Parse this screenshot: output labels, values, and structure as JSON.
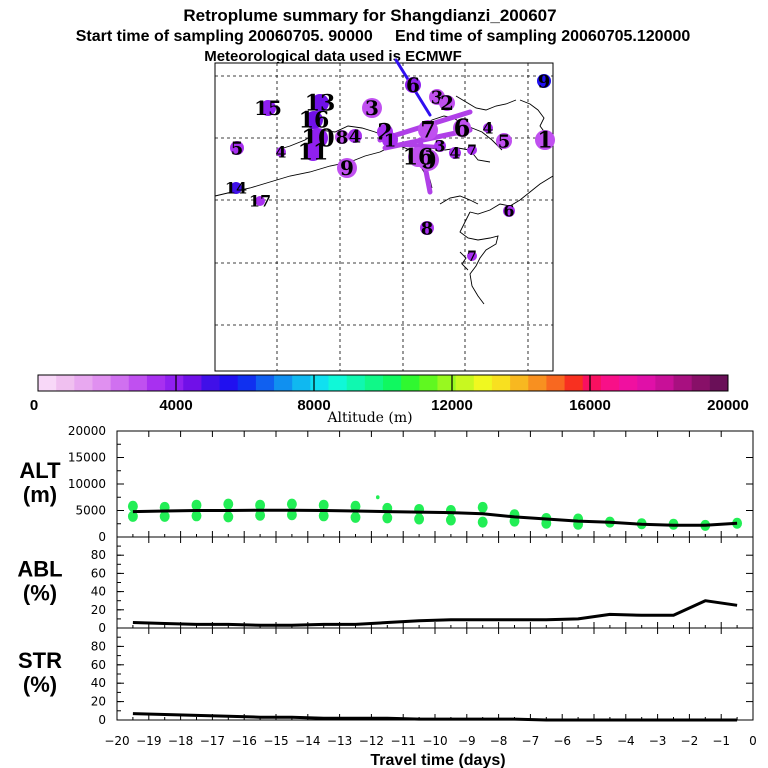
{
  "header": {
    "title": "Retroplume summary for Shangdianzi_200607",
    "sampling_line": "Start time of sampling 20060705. 90000     End time of sampling 20060705.120000",
    "met_line": "Meteorological data used is ECMWF"
  },
  "colors": {
    "background": "#ffffff",
    "panel_line": "#000000",
    "alt_points": "#22ee55",
    "gridline": "#000000"
  },
  "colorbar": {
    "title": "Altitude (m)",
    "tick_labels": [
      "0",
      "4000",
      "8000",
      "12000",
      "16000",
      "20000"
    ],
    "colors": [
      "#f8d8f8",
      "#f0c0f0",
      "#e8a8f0",
      "#e090f0",
      "#d070f0",
      "#c050f0",
      "#a830f0",
      "#9020f0",
      "#7010e8",
      "#4010e8",
      "#2010f0",
      "#1030f0",
      "#1060f0",
      "#1090f0",
      "#10b8f0",
      "#10e0f0",
      "#10f8d8",
      "#10f8b0",
      "#10f888",
      "#10f860",
      "#30f830",
      "#60f820",
      "#98f820",
      "#c8f820",
      "#f0f820",
      "#f8e020",
      "#f8b820",
      "#f89020",
      "#f86820",
      "#f83020",
      "#f81060",
      "#f81088",
      "#f010a0",
      "#e010a8",
      "#c81098",
      "#a81080",
      "#881068",
      "#6a1058"
    ]
  },
  "map_labels": {
    "numbers": [
      {
        "text": "15",
        "color": "#9020f0"
      },
      {
        "text": "13",
        "color": "#7010e8"
      },
      {
        "text": "3",
        "color": "#c050f0"
      },
      {
        "text": "16",
        "color": "#7010e8"
      },
      {
        "text": "10",
        "color": "#9020f0"
      },
      {
        "text": "8",
        "color": "#c050f0"
      },
      {
        "text": "4",
        "color": "#a830f0"
      },
      {
        "text": "11",
        "color": "#9020f0"
      },
      {
        "text": "5",
        "color": "#a830f0"
      },
      {
        "text": "4",
        "color": "#a830f0"
      },
      {
        "text": "9",
        "color": "#c050f0"
      },
      {
        "text": "14",
        "color": "#4010e8"
      },
      {
        "text": "17",
        "color": "#a830f0"
      },
      {
        "text": "2",
        "color": "#a830f0"
      },
      {
        "text": "1",
        "color": "#a830f0"
      },
      {
        "text": "3",
        "color": "#c050f0"
      },
      {
        "text": "0",
        "color": "#c050f0"
      },
      {
        "text": "6",
        "color": "#9020f0"
      },
      {
        "text": "2",
        "color": "#c050f0"
      },
      {
        "text": "7",
        "color": "#c050f0"
      },
      {
        "text": "6",
        "color": "#c050f0"
      },
      {
        "text": "4",
        "color": "#a830f0"
      },
      {
        "text": "3",
        "color": "#a830f0"
      },
      {
        "text": "4",
        "color": "#a830f0"
      },
      {
        "text": "7",
        "color": "#a830f0"
      },
      {
        "text": "5",
        "color": "#c050f0"
      },
      {
        "text": "16",
        "color": "#c050f0"
      },
      {
        "text": "9",
        "color": "#2010f0"
      },
      {
        "text": "6",
        "color": "#a830f0"
      },
      {
        "text": "8",
        "color": "#a830f0"
      },
      {
        "text": "7",
        "color": "#a830f0"
      },
      {
        "text": "1",
        "color": "#c050f0"
      }
    ]
  },
  "chart_data": [
    {
      "type": "scatter",
      "panel": "ALT",
      "ylabel": "ALT\n(m)",
      "ylim": [
        0,
        20000
      ],
      "y_ticks": [
        "0",
        "5000",
        "10000",
        "15000",
        "20000"
      ],
      "xlim": [
        -20,
        0
      ],
      "series": [
        {
          "name": "mean altitude",
          "kind": "line",
          "x": [
            -19.5,
            -18.5,
            -17.5,
            -16.5,
            -15.5,
            -14.5,
            -13.5,
            -12.5,
            -11.5,
            -10.5,
            -9.5,
            -8.5,
            -7.5,
            -6.5,
            -5.5,
            -4.5,
            -3.5,
            -2.5,
            -1.5,
            -0.5
          ],
          "y": [
            4800,
            4900,
            5000,
            5000,
            5050,
            5050,
            5000,
            4900,
            4800,
            4700,
            4600,
            4400,
            3800,
            3400,
            3000,
            2800,
            2400,
            2200,
            2200,
            2600
          ]
        },
        {
          "name": "plume points",
          "kind": "dots",
          "x": [
            -19.5,
            -19.5,
            -18.5,
            -18.5,
            -17.5,
            -17.5,
            -16.5,
            -16.5,
            -15.5,
            -15.5,
            -14.5,
            -14.5,
            -13.5,
            -13.5,
            -12.5,
            -12.5,
            -11.5,
            -11.5,
            -10.5,
            -10.5,
            -9.5,
            -9.5,
            -8.5,
            -8.5,
            -7.5,
            -7.5,
            -6.5,
            -6.5,
            -5.5,
            -5.5,
            -4.5,
            -3.5,
            -2.5,
            -1.5,
            -0.5,
            -11.8
          ],
          "y": [
            5800,
            3900,
            5600,
            3900,
            6000,
            4000,
            6200,
            3800,
            6000,
            4100,
            6200,
            4200,
            6000,
            4000,
            5800,
            3700,
            5400,
            3600,
            5200,
            3400,
            5000,
            3200,
            5600,
            2800,
            4200,
            3000,
            3500,
            2600,
            3400,
            2400,
            2800,
            2500,
            2400,
            2200,
            2600,
            7500
          ]
        }
      ]
    },
    {
      "type": "line",
      "panel": "ABL",
      "ylabel": "ABL\n(%)",
      "ylim": [
        0,
        100
      ],
      "y_ticks": [
        "0",
        "20",
        "40",
        "60",
        "80"
      ],
      "xlim": [
        -20,
        0
      ],
      "series": [
        {
          "name": "ABL fraction",
          "x": [
            -19.5,
            -18.5,
            -17.5,
            -16.5,
            -15.5,
            -14.5,
            -13.5,
            -12.5,
            -11.5,
            -10.5,
            -9.5,
            -8.5,
            -7.5,
            -6.5,
            -5.5,
            -4.5,
            -3.5,
            -2.5,
            -1.5,
            -0.5
          ],
          "y": [
            6,
            5,
            4,
            4,
            3,
            3,
            4,
            4,
            6,
            8,
            9,
            9,
            9,
            9,
            10,
            15,
            14,
            14,
            30,
            25
          ]
        }
      ]
    },
    {
      "type": "line",
      "panel": "STR",
      "ylabel": "STR\n(%)",
      "ylim": [
        0,
        100
      ],
      "y_ticks": [
        "0",
        "20",
        "40",
        "60",
        "80"
      ],
      "xlabel": "Travel time (days)",
      "xlim": [
        -20,
        0
      ],
      "x_ticks": [
        "−20",
        "−19",
        "−18",
        "−17",
        "−16",
        "−15",
        "−14",
        "−13",
        "−12",
        "−11",
        "−10",
        "−9",
        "−8",
        "−7",
        "−6",
        "−5",
        "−4",
        "−3",
        "−2",
        "−1",
        "0"
      ],
      "series": [
        {
          "name": "stratospheric fraction",
          "x": [
            -19.5,
            -18.5,
            -17.5,
            -16.5,
            -15.5,
            -14.5,
            -13.5,
            -12.5,
            -11.5,
            -10.5,
            -9.5,
            -8.5,
            -7.5,
            -6.5,
            -5.5,
            -4.5,
            -3.5,
            -2.5,
            -1.5,
            -0.5
          ],
          "y": [
            7,
            6,
            5,
            4,
            3,
            3,
            2,
            2,
            2,
            1,
            1,
            1,
            1,
            0,
            0,
            0,
            0,
            0,
            0,
            0
          ]
        }
      ]
    }
  ]
}
